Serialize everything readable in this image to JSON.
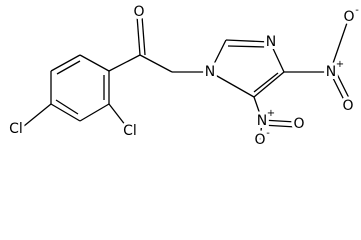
{
  "atoms": [
    {
      "label": "O"
    },
    {
      "label": "N"
    },
    {
      "label": "N"
    },
    {
      "label": "N",
      "charge": "+"
    },
    {
      "label": "O",
      "charge": "-"
    },
    {
      "label": "O"
    },
    {
      "label": "N",
      "charge": "+"
    },
    {
      "label": "O"
    },
    {
      "label": "O",
      "charge": "-"
    },
    {
      "label": "Cl"
    },
    {
      "label": "Cl"
    }
  ]
}
